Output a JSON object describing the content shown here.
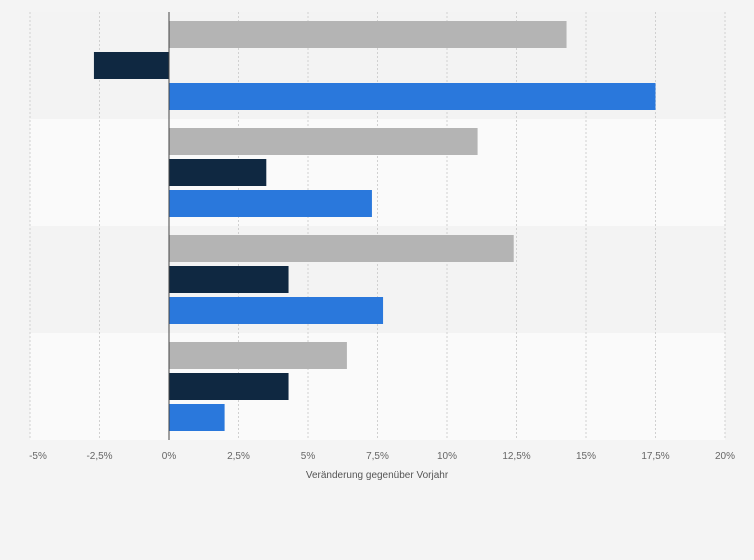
{
  "chart_data": {
    "type": "bar",
    "orientation": "horizontal",
    "title": "",
    "xlabel": "Veränderung gegenüber Vorjahr",
    "ylabel": "",
    "xlim": [
      -5,
      20
    ],
    "ticks": [
      -5,
      -2.5,
      0,
      2.5,
      5,
      7.5,
      10,
      12.5,
      15,
      17.5,
      20
    ],
    "tick_labels": [
      "-5%",
      "-2,5%",
      "0%",
      "2,5%",
      "5%",
      "7,5%",
      "10%",
      "12,5%",
      "15%",
      "17,5%",
      "20%"
    ],
    "grid": true,
    "legend": "none",
    "categories": [
      "",
      "",
      "",
      ""
    ],
    "series": [
      {
        "color": "#b4b4b4",
        "values": [
          14.3,
          11.1,
          12.4,
          6.4
        ]
      },
      {
        "color": "#0f2841",
        "values": [
          -2.7,
          3.5,
          4.3,
          4.3
        ]
      },
      {
        "color": "#2a78dc",
        "values": [
          17.5,
          7.3,
          7.7,
          2.0
        ]
      }
    ],
    "colors": {
      "band_a": "#f3f3f3",
      "band_b": "#fafafa",
      "grid": "#d0d0d0",
      "zero_axis": "#444444"
    }
  }
}
